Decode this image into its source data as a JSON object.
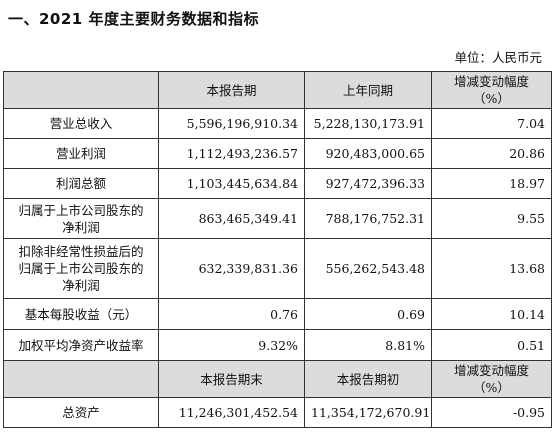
{
  "heading": "一、2021 年度主要财务数据和指标",
  "unit_label": "单位：人民币元",
  "header1": {
    "col1": "",
    "col2": "本报告期",
    "col3": "上年同期",
    "col4_line1": "增减变动幅度",
    "col4_line2": "（%）"
  },
  "rows1": [
    {
      "label": [
        "营业总收入"
      ],
      "current": "5,596,196,910.34",
      "previous": "5,228,130,173.91",
      "change": "7.04"
    },
    {
      "label": [
        "营业利润"
      ],
      "current": "1,112,493,236.57",
      "previous": "920,483,000.65",
      "change": "20.86"
    },
    {
      "label": [
        "利润总额"
      ],
      "current": "1,103,445,634.84",
      "previous": "927,472,396.33",
      "change": "18.97"
    },
    {
      "label": [
        "归属于上市公司股东的",
        "净利润"
      ],
      "current": "863,465,349.41",
      "previous": "788,176,752.31",
      "change": "9.55"
    },
    {
      "label": [
        "扣除非经常性损益后的",
        "归属于上市公司股东的",
        "净利润"
      ],
      "current": "632,339,831.36",
      "previous": "556,262,543.48",
      "change": "13.68"
    },
    {
      "label": [
        "基本每股收益（元）"
      ],
      "current": "0.76",
      "previous": "0.69",
      "change": "10.14"
    },
    {
      "label": [
        "加权平均净资产收益率"
      ],
      "current": "9.32%",
      "previous": "8.81%",
      "change": "0.51"
    }
  ],
  "header2": {
    "col1": "",
    "col2": "本报告期末",
    "col3": "本报告期初",
    "col4_line1": "增减变动幅度",
    "col4_line2": "（%）"
  },
  "rows2": [
    {
      "label": [
        "总资产"
      ],
      "current": "11,246,301,452.54",
      "previous": "11,354,172,670.91",
      "change": "-0.95"
    }
  ],
  "colors": {
    "header_bg": "#dcdcdc",
    "border": "#333333",
    "text": "#111111"
  }
}
